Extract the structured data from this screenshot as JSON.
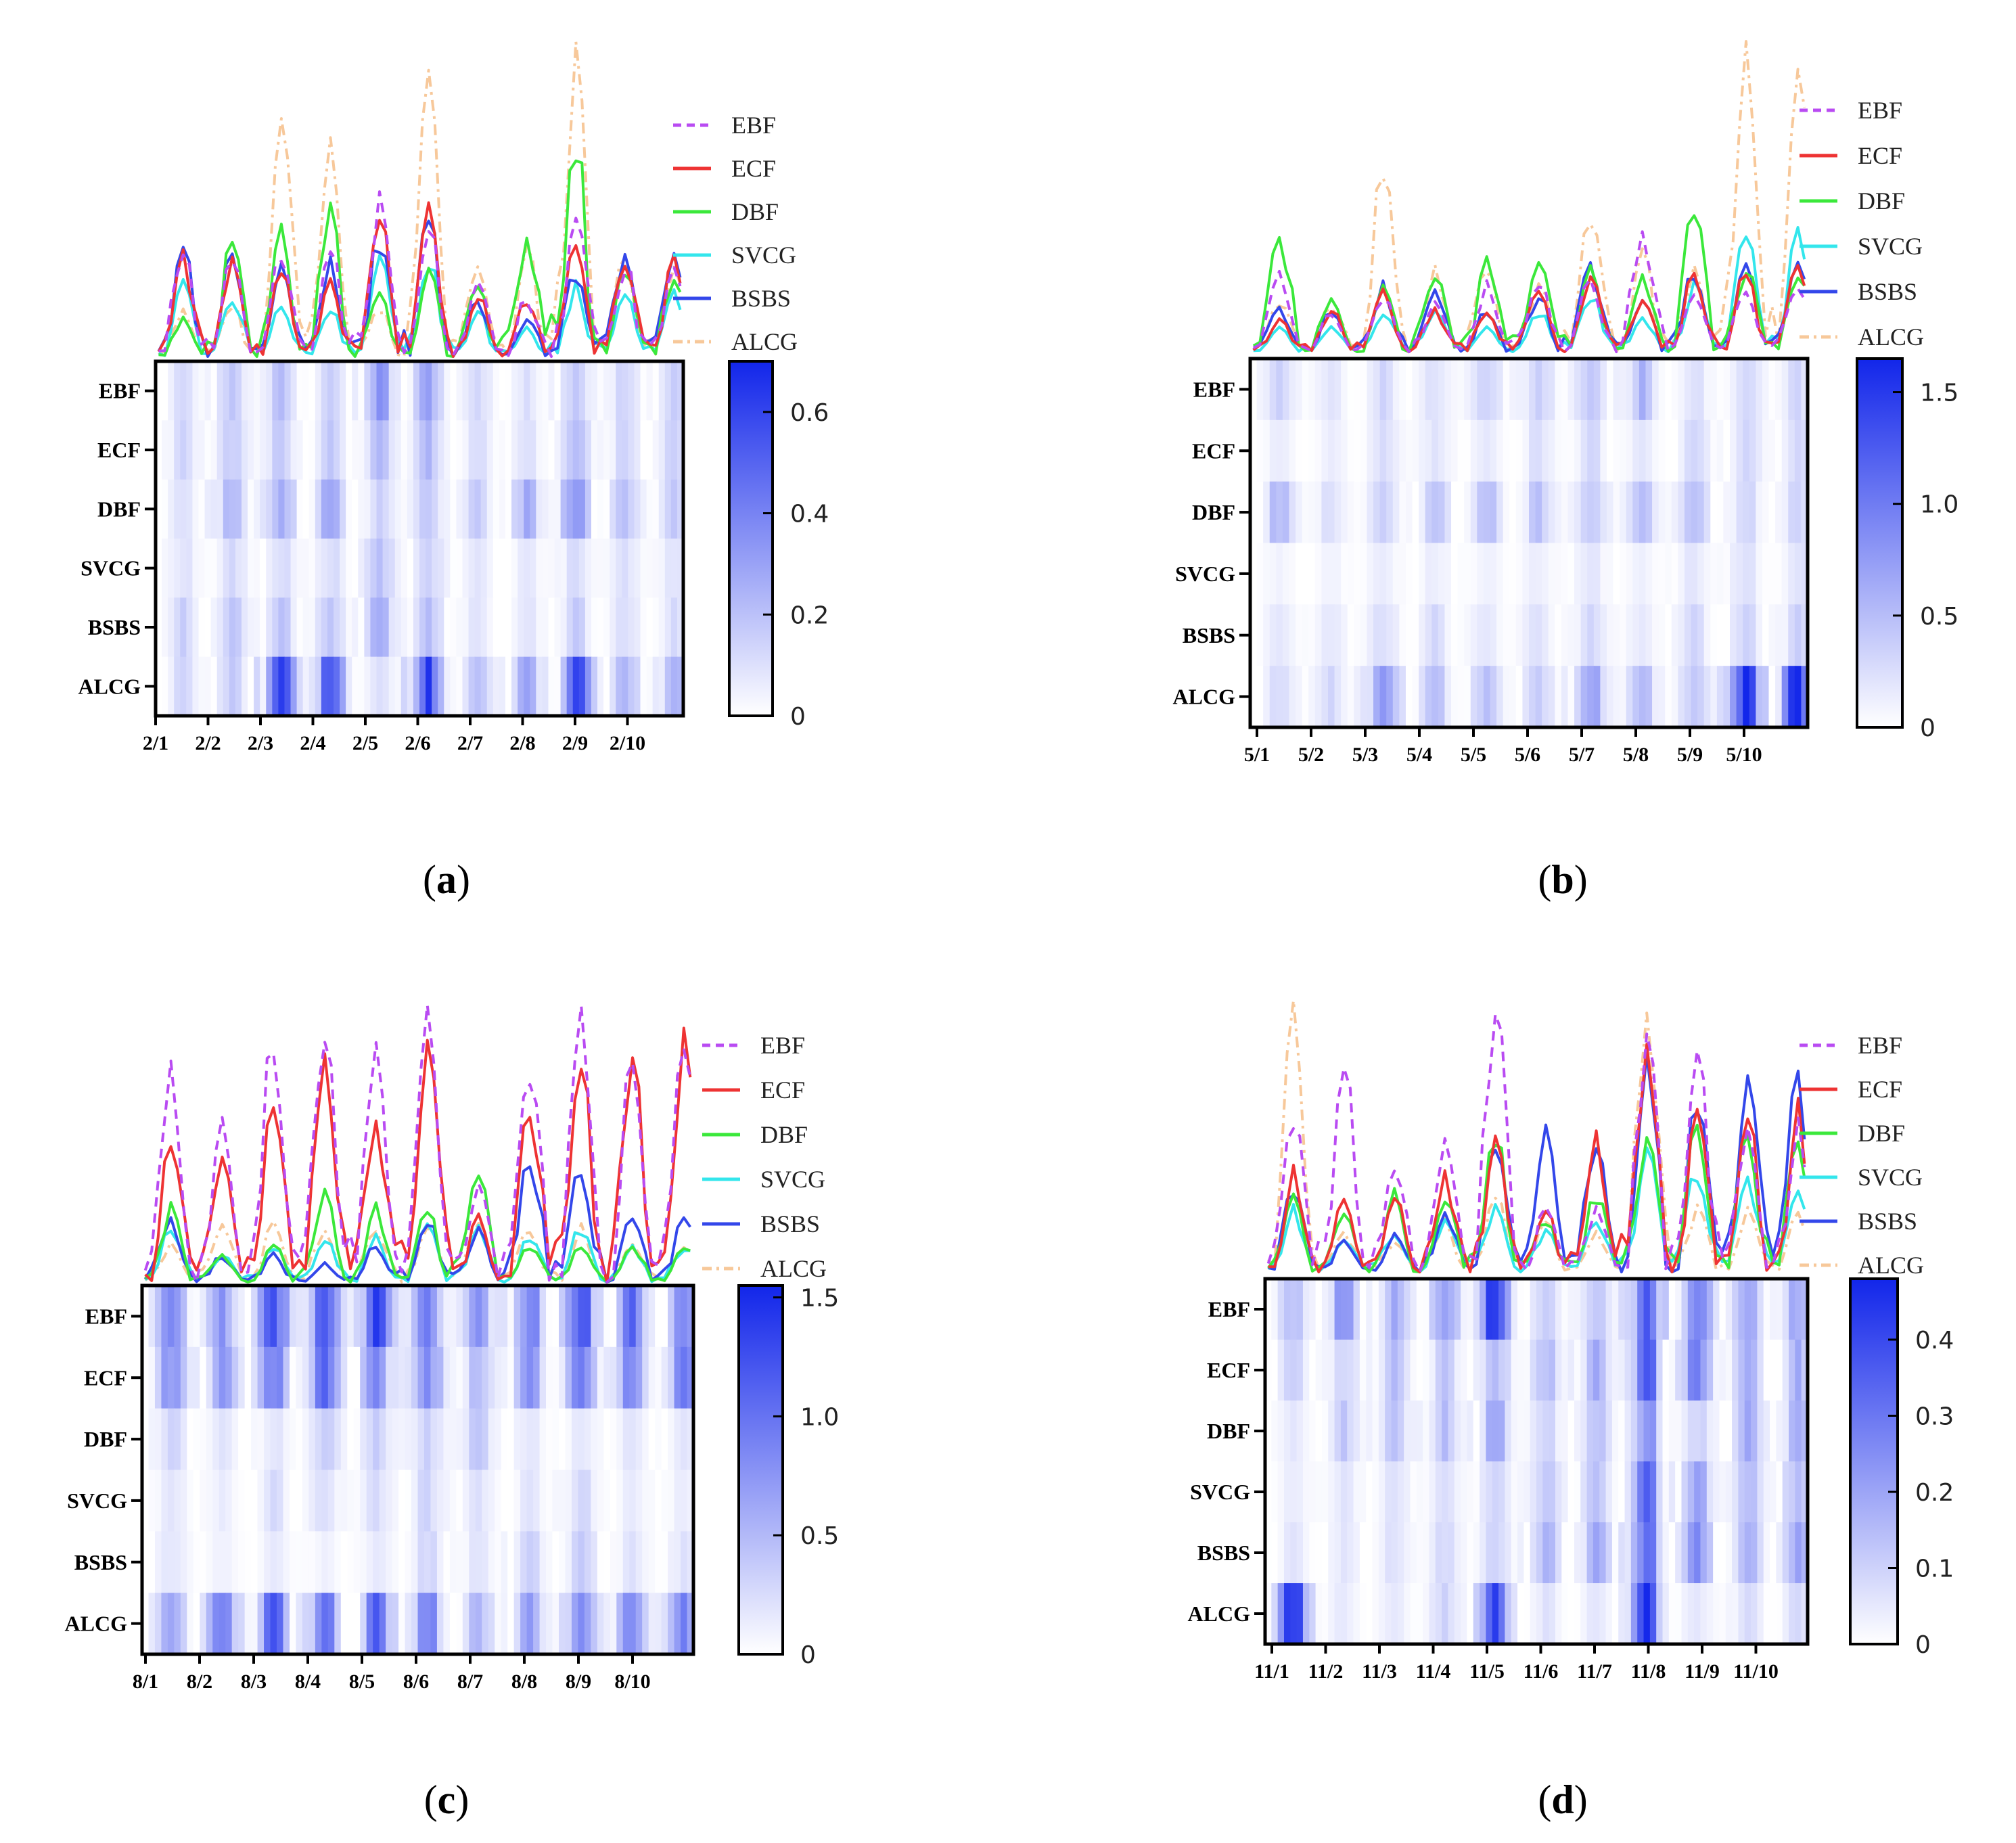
{
  "figure": {
    "colors": {
      "EBF": "#b94bf2",
      "ECF": "#ee3333",
      "DBF": "#3be83b",
      "SVCG": "#33e6ec",
      "BSBS": "#3347ea",
      "ALCG": "#f7c89a",
      "heat_low": "#ffffff",
      "heat_high": "#1226ea"
    },
    "legend": [
      {
        "name": "EBF",
        "style": "dashed"
      },
      {
        "name": "ECF",
        "style": "solid"
      },
      {
        "name": "DBF",
        "style": "solid"
      },
      {
        "name": "SVCG",
        "style": "solid"
      },
      {
        "name": "BSBS",
        "style": "solid"
      },
      {
        "name": "ALCG",
        "style": "dashdot"
      }
    ]
  },
  "chart_data": [
    {
      "type": "heatmap",
      "panel_label": "(a)",
      "panel_letter": "a",
      "rows": [
        "EBF",
        "ECF",
        "DBF",
        "SVCG",
        "BSBS",
        "ALCG"
      ],
      "x_tick_labels": [
        "2/1",
        "2/2",
        "2/3",
        "2/4",
        "2/5",
        "2/6",
        "2/7",
        "2/8",
        "2/9",
        "2/10"
      ],
      "colorbar": {
        "min": 0,
        "max": 0.7,
        "ticks": [
          0,
          0.2,
          0.4,
          0.6
        ],
        "tick_labels": [
          "0",
          "0.2",
          "0.4",
          "0.6"
        ]
      },
      "line_series_daily_peak": {
        "EBF": [
          0.28,
          0.25,
          0.27,
          0.3,
          0.4,
          0.35,
          0.18,
          0.15,
          0.36,
          0.24
        ],
        "ECF": [
          0.25,
          0.24,
          0.22,
          0.21,
          0.38,
          0.36,
          0.17,
          0.14,
          0.3,
          0.25
        ],
        "DBF": [
          0.1,
          0.32,
          0.33,
          0.39,
          0.16,
          0.22,
          0.2,
          0.32,
          0.55,
          0.22
        ],
        "SVCG": [
          0.18,
          0.16,
          0.14,
          0.13,
          0.26,
          0.25,
          0.12,
          0.08,
          0.18,
          0.16
        ],
        "BSBS": [
          0.3,
          0.26,
          0.22,
          0.24,
          0.3,
          0.36,
          0.15,
          0.1,
          0.22,
          0.27
        ],
        "ALCG": [
          0.12,
          0.13,
          0.63,
          0.6,
          0.13,
          0.68,
          0.23,
          0.3,
          0.77,
          0.25
        ]
      },
      "heat_daily_peak": {
        "EBF": [
          0.15,
          0.2,
          0.22,
          0.2,
          0.34,
          0.3,
          0.12,
          0.1,
          0.2,
          0.15
        ],
        "ECF": [
          0.14,
          0.16,
          0.18,
          0.18,
          0.22,
          0.22,
          0.12,
          0.1,
          0.2,
          0.15
        ],
        "DBF": [
          0.1,
          0.25,
          0.3,
          0.3,
          0.15,
          0.2,
          0.18,
          0.25,
          0.38,
          0.2
        ],
        "SVCG": [
          0.1,
          0.12,
          0.12,
          0.12,
          0.2,
          0.16,
          0.08,
          0.08,
          0.12,
          0.1
        ],
        "BSBS": [
          0.16,
          0.18,
          0.18,
          0.18,
          0.25,
          0.22,
          0.1,
          0.1,
          0.16,
          0.12
        ],
        "ALCG": [
          0.15,
          0.18,
          0.58,
          0.55,
          0.1,
          0.6,
          0.2,
          0.3,
          0.65,
          0.25
        ]
      }
    },
    {
      "type": "heatmap",
      "panel_label": "(b)",
      "panel_letter": "b",
      "rows": [
        "EBF",
        "ECF",
        "DBF",
        "SVCG",
        "BSBS",
        "ALCG"
      ],
      "x_tick_labels": [
        "5/1",
        "5/2",
        "5/3",
        "5/4",
        "5/5",
        "5/6",
        "5/7",
        "5/8",
        "5/9",
        "5/10"
      ],
      "colorbar": {
        "min": 0,
        "max": 1.65,
        "ticks": [
          0,
          0.5,
          1.0,
          1.5
        ],
        "tick_labels": [
          "0",
          "0.5",
          "1.0",
          "1.5"
        ]
      },
      "line_series_daily_peak": {
        "EBF": [
          0.45,
          0.25,
          0.35,
          0.3,
          0.4,
          0.45,
          0.45,
          0.7,
          0.35,
          0.4
        ],
        "ECF": [
          0.2,
          0.25,
          0.4,
          0.25,
          0.25,
          0.35,
          0.45,
          0.3,
          0.5,
          0.5
        ],
        "DBF": [
          0.75,
          0.3,
          0.4,
          0.5,
          0.55,
          0.55,
          0.5,
          0.45,
          0.9,
          0.5
        ],
        "SVCG": [
          0.15,
          0.15,
          0.25,
          0.25,
          0.15,
          0.25,
          0.35,
          0.2,
          0.4,
          0.7
        ],
        "BSBS": [
          0.25,
          0.25,
          0.4,
          0.4,
          0.25,
          0.35,
          0.5,
          0.3,
          0.5,
          0.55
        ],
        "ALCG": [
          0.3,
          0.3,
          1.1,
          0.5,
          0.55,
          0.4,
          0.85,
          0.6,
          0.5,
          1.85
        ]
      },
      "heat_daily_peak": {
        "EBF": [
          0.35,
          0.2,
          0.3,
          0.25,
          0.35,
          0.4,
          0.45,
          0.55,
          0.25,
          0.3
        ],
        "ECF": [
          0.15,
          0.15,
          0.25,
          0.2,
          0.2,
          0.25,
          0.3,
          0.2,
          0.3,
          0.3
        ],
        "DBF": [
          0.55,
          0.25,
          0.35,
          0.45,
          0.5,
          0.45,
          0.45,
          0.6,
          0.55,
          0.35
        ],
        "SVCG": [
          0.1,
          0.1,
          0.15,
          0.15,
          0.12,
          0.15,
          0.2,
          0.12,
          0.2,
          0.25
        ],
        "BSBS": [
          0.2,
          0.2,
          0.25,
          0.3,
          0.2,
          0.25,
          0.3,
          0.2,
          0.3,
          0.35
        ],
        "ALCG": [
          0.3,
          0.3,
          0.9,
          0.5,
          0.55,
          0.4,
          0.75,
          0.5,
          0.45,
          1.6
        ]
      }
    },
    {
      "type": "heatmap",
      "panel_label": "(c)",
      "panel_letter": "c",
      "rows": [
        "EBF",
        "ECF",
        "DBF",
        "SVCG",
        "BSBS",
        "ALCG"
      ],
      "x_tick_labels": [
        "8/1",
        "8/2",
        "8/3",
        "8/4",
        "8/5",
        "8/6",
        "8/7",
        "8/8",
        "8/9",
        "8/10"
      ],
      "colorbar": {
        "min": 0,
        "max": 1.55,
        "ticks": [
          0,
          0.5,
          1.0,
          1.5
        ],
        "tick_labels": [
          "0",
          "0.5",
          "1.0",
          "1.5"
        ]
      },
      "line_series_daily_peak": {
        "EBF": [
          1.2,
          0.85,
          1.4,
          1.45,
          1.5,
          1.4,
          0.6,
          1.2,
          1.5,
          1.3
        ],
        "ECF": [
          0.8,
          0.75,
          1.0,
          1.3,
          0.9,
          1.3,
          0.4,
          1.0,
          1.2,
          1.3
        ],
        "DBF": [
          0.4,
          0.15,
          0.2,
          0.5,
          0.4,
          0.4,
          0.6,
          0.2,
          0.2,
          0.2
        ],
        "SVCG": [
          0.3,
          0.15,
          0.2,
          0.25,
          0.25,
          0.3,
          0.3,
          0.25,
          0.3,
          0.2
        ],
        "BSBS": [
          0.35,
          0.15,
          0.15,
          0.1,
          0.2,
          0.35,
          0.3,
          0.7,
          0.65,
          0.35
        ],
        "ALCG": [
          0.2,
          0.3,
          0.35,
          0.3,
          0.3,
          0.3,
          0.3,
          0.3,
          0.3,
          0.2
        ]
      },
      "heat_daily_peak": {
        "EBF": [
          0.9,
          0.7,
          1.3,
          1.3,
          1.3,
          1.1,
          0.7,
          1.0,
          1.3,
          1.0
        ],
        "ECF": [
          0.8,
          0.7,
          0.9,
          1.0,
          0.8,
          0.9,
          0.5,
          0.8,
          0.9,
          0.9
        ],
        "DBF": [
          0.3,
          0.2,
          0.2,
          0.35,
          0.35,
          0.35,
          0.4,
          0.2,
          0.2,
          0.2
        ],
        "SVCG": [
          0.2,
          0.15,
          0.25,
          0.25,
          0.25,
          0.3,
          0.2,
          0.2,
          0.3,
          0.15
        ],
        "BSBS": [
          0.2,
          0.1,
          0.15,
          0.1,
          0.15,
          0.3,
          0.2,
          0.4,
          0.35,
          0.2
        ],
        "ALCG": [
          0.6,
          1.0,
          1.2,
          1.0,
          1.1,
          0.9,
          0.5,
          0.7,
          0.9,
          0.9
        ]
      }
    },
    {
      "type": "heatmap",
      "panel_label": "(d)",
      "panel_letter": "d",
      "rows": [
        "EBF",
        "ECF",
        "DBF",
        "SVCG",
        "BSBS",
        "ALCG"
      ],
      "x_tick_labels": [
        "11/1",
        "11/2",
        "11/3",
        "11/4",
        "11/5",
        "11/6",
        "11/7",
        "11/8",
        "11/9",
        "11/10"
      ],
      "colorbar": {
        "min": 0,
        "max": 0.48,
        "ticks": [
          0,
          0.1,
          0.2,
          0.3,
          0.4
        ],
        "tick_labels": [
          "0",
          "0.1",
          "0.2",
          "0.3",
          "0.4"
        ]
      },
      "line_series_daily_peak": {
        "EBF": [
          0.3,
          0.4,
          0.22,
          0.25,
          0.55,
          0.12,
          0.12,
          0.46,
          0.42,
          0.3
        ],
        "ECF": [
          0.19,
          0.13,
          0.15,
          0.18,
          0.26,
          0.12,
          0.25,
          0.44,
          0.32,
          0.31
        ],
        "DBF": [
          0.15,
          0.12,
          0.16,
          0.15,
          0.28,
          0.1,
          0.15,
          0.26,
          0.3,
          0.27
        ],
        "SVCG": [
          0.12,
          0.07,
          0.08,
          0.1,
          0.12,
          0.08,
          0.1,
          0.24,
          0.2,
          0.18
        ],
        "BSBS": [
          0.16,
          0.06,
          0.07,
          0.12,
          0.24,
          0.26,
          0.26,
          0.42,
          0.34,
          0.38
        ],
        "ALCG": [
          0.52,
          0.08,
          0.06,
          0.1,
          0.15,
          0.1,
          0.08,
          0.5,
          0.12,
          0.12
        ]
      },
      "heat_daily_peak": {
        "EBF": [
          0.15,
          0.25,
          0.18,
          0.22,
          0.45,
          0.1,
          0.12,
          0.44,
          0.3,
          0.2
        ],
        "ECF": [
          0.1,
          0.1,
          0.15,
          0.12,
          0.16,
          0.15,
          0.18,
          0.36,
          0.28,
          0.18
        ],
        "DBF": [
          0.06,
          0.12,
          0.14,
          0.15,
          0.2,
          0.1,
          0.14,
          0.26,
          0.1,
          0.18
        ],
        "SVCG": [
          0.05,
          0.06,
          0.07,
          0.08,
          0.1,
          0.12,
          0.14,
          0.34,
          0.22,
          0.16
        ],
        "BSBS": [
          0.06,
          0.06,
          0.07,
          0.09,
          0.1,
          0.16,
          0.18,
          0.36,
          0.24,
          0.18
        ],
        "ALCG": [
          0.44,
          0.05,
          0.06,
          0.1,
          0.46,
          0.06,
          0.06,
          0.44,
          0.06,
          0.08
        ]
      }
    }
  ]
}
